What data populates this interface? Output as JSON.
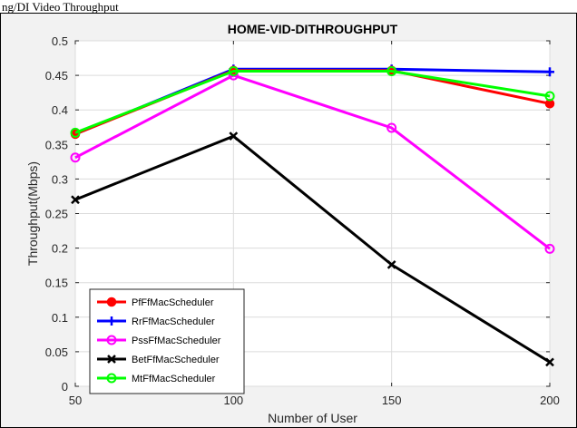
{
  "caption_fragment": "ng/DI Video Throughput",
  "chart_data": {
    "type": "line",
    "title": "HOME-VID-DITHROUGHPUT",
    "xlabel": "Number of User",
    "ylabel": "Throughput(Mbps)",
    "x": [
      50,
      100,
      150,
      200
    ],
    "xlim": [
      50,
      200
    ],
    "ylim": [
      0,
      0.5
    ],
    "xticks": [
      "50",
      "100",
      "150",
      "200"
    ],
    "yticks": [
      "0",
      "0.05",
      "0.1",
      "0.15",
      "0.2",
      "0.25",
      "0.3",
      "0.35",
      "0.4",
      "0.45",
      "0.5"
    ],
    "grid": true,
    "legend_position": "bottom-left",
    "series": [
      {
        "name": "PfFfMacScheduler",
        "values": [
          0.365,
          0.457,
          0.457,
          0.409
        ],
        "color": "#ff0000",
        "marker": "dot"
      },
      {
        "name": "RrFfMacScheduler",
        "values": [
          0.365,
          0.459,
          0.459,
          0.455
        ],
        "color": "#0000ff",
        "marker": "plus"
      },
      {
        "name": "PssFfMacScheduler",
        "values": [
          0.331,
          0.45,
          0.374,
          0.199
        ],
        "color": "#ff00ff",
        "marker": "circle"
      },
      {
        "name": "BetFfMacScheduler",
        "values": [
          0.27,
          0.362,
          0.176,
          0.035
        ],
        "color": "#000000",
        "marker": "cross"
      },
      {
        "name": "MtFfMacScheduler",
        "values": [
          0.367,
          0.456,
          0.456,
          0.42
        ],
        "color": "#00ff00",
        "marker": "circle"
      }
    ]
  }
}
